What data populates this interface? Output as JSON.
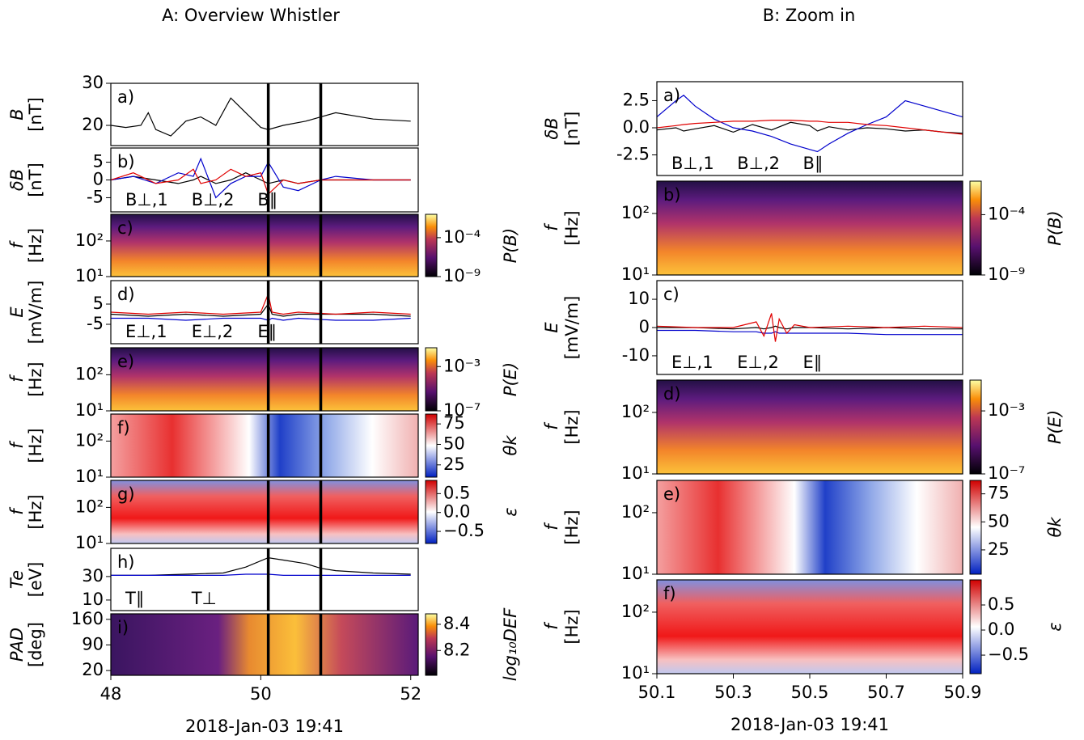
{
  "chart_data": [
    {
      "type": "line",
      "title": "A: Overview Whistler",
      "label": "a)",
      "ylabel": [
        "B",
        "[nT]"
      ],
      "xlim": [
        48,
        52.1
      ],
      "ylim": [
        15.2,
        30
      ],
      "yticks": [
        20,
        30
      ],
      "vlines": [
        50.1,
        50.8
      ],
      "x": [
        48,
        48.2,
        48.4,
        48.5,
        48.6,
        48.8,
        49,
        49.2,
        49.4,
        49.6,
        49.8,
        50,
        50.1,
        50.3,
        50.6,
        50.8,
        51,
        51.5,
        52
      ],
      "series": [
        {
          "name": null,
          "color": "#000000",
          "values": [
            20,
            19.5,
            20,
            23,
            19,
            17.5,
            21,
            22,
            20,
            26.5,
            23,
            19.5,
            19,
            20,
            21,
            22,
            23,
            21.5,
            21
          ]
        }
      ]
    },
    {
      "type": "line",
      "label": "b)",
      "ylabel": [
        "δB",
        "[nT]"
      ],
      "xlim": [
        48,
        52.1
      ],
      "ylim": [
        -9,
        9
      ],
      "yticks": [
        5,
        0,
        -5
      ],
      "vlines": [
        50.1,
        50.8
      ],
      "x": [
        48,
        48.3,
        48.6,
        48.9,
        49.1,
        49.2,
        49.4,
        49.6,
        49.8,
        50,
        50.1,
        50.3,
        50.5,
        50.8,
        51,
        51.5,
        52
      ],
      "series": [
        {
          "name": "B⊥,1",
          "color": "#000000",
          "values": [
            0,
            1,
            0,
            -1,
            0,
            1,
            -1,
            0,
            2,
            0,
            -1,
            0,
            -1,
            0,
            0,
            0,
            0
          ]
        },
        {
          "name": "B⊥,2",
          "color": "#0000cc",
          "values": [
            0,
            1,
            -1,
            2,
            1,
            6,
            -5,
            -1,
            1,
            1,
            5,
            -2,
            -3,
            0,
            1,
            0,
            0
          ]
        },
        {
          "name": "B∥",
          "color": "#e00000",
          "values": [
            0,
            2,
            -1,
            0,
            3,
            -1,
            0,
            3,
            1,
            2,
            -4,
            0,
            -1,
            0,
            0,
            0,
            0
          ]
        }
      ]
    },
    {
      "type": "spectrogram",
      "label": "c)",
      "ylabel": [
        "f",
        "[Hz]"
      ],
      "xlim": [
        48,
        52.1
      ],
      "ylim": [
        10,
        560
      ],
      "yscale": "log",
      "yticks": [
        {
          "value": 10,
          "label": "10¹"
        },
        {
          "value": 100,
          "label": "10²"
        }
      ],
      "vlines": [
        50.1,
        50.8
      ],
      "colormap": "inferno",
      "clabel": "P(B)",
      "cscale": "log",
      "clim": [
        1e-09,
        0.1
      ],
      "cticks": [
        {
          "value": 0.0001,
          "label": "10⁻⁴"
        },
        {
          "value": 1e-09,
          "label": "10⁻⁹"
        }
      ]
    },
    {
      "type": "line",
      "label": "d)",
      "ylabel": [
        "E",
        "[mV/m]"
      ],
      "xlim": [
        48,
        52.1
      ],
      "ylim": [
        -14.6,
        16.6
      ],
      "yticks": [
        5,
        -5
      ],
      "vlines": [
        50.1,
        50.8
      ],
      "x": [
        48,
        48.5,
        49,
        49.5,
        50,
        50.1,
        50.15,
        50.3,
        50.5,
        51,
        51.5,
        52
      ],
      "series": [
        {
          "name": "E⊥,1",
          "color": "#000000",
          "values": [
            0,
            -1,
            0,
            -1,
            0,
            5,
            0,
            -1,
            0,
            0,
            0,
            -1
          ]
        },
        {
          "name": "E⊥,2",
          "color": "#0000cc",
          "values": [
            -2,
            -2,
            -3,
            -2,
            -2,
            -3,
            -2,
            -3,
            -2,
            -3,
            -3,
            -2
          ]
        },
        {
          "name": "E∥",
          "color": "#e00000",
          "values": [
            1,
            0,
            1,
            0,
            1,
            10,
            1,
            0,
            1,
            0,
            1,
            0
          ]
        }
      ]
    },
    {
      "type": "spectrogram",
      "label": "e)",
      "ylabel": [
        "f",
        "[Hz]"
      ],
      "xlim": [
        48,
        52.1
      ],
      "ylim": [
        10,
        560
      ],
      "yscale": "log",
      "yticks": [
        {
          "value": 10,
          "label": "10¹"
        },
        {
          "value": 100,
          "label": "10²"
        }
      ],
      "vlines": [
        50.1,
        50.8
      ],
      "colormap": "inferno",
      "clabel": "P(E)",
      "cscale": "log",
      "clim": [
        1e-07,
        0.05
      ],
      "cticks": [
        {
          "value": 0.001,
          "label": "10⁻³"
        },
        {
          "value": 1e-07,
          "label": "10⁻⁷"
        }
      ]
    },
    {
      "type": "spectrogram",
      "label": "f)",
      "ylabel": [
        "f",
        "[Hz]"
      ],
      "xlim": [
        48,
        52.1
      ],
      "ylim": [
        10,
        560
      ],
      "yscale": "log",
      "yticks": [
        {
          "value": 10,
          "label": "10¹"
        },
        {
          "value": 100,
          "label": "10²"
        }
      ],
      "vlines": [
        50.1,
        50.8
      ],
      "colormap": "theta",
      "clabel": "θk",
      "clim": [
        10,
        87
      ],
      "cticks": [
        75,
        50,
        25
      ]
    },
    {
      "type": "spectrogram",
      "label": "g)",
      "ylabel": [
        "f",
        "[Hz]"
      ],
      "xlim": [
        48,
        52.1
      ],
      "ylim": [
        10,
        560
      ],
      "yscale": "log",
      "yticks": [
        {
          "value": 10,
          "label": "10¹"
        },
        {
          "value": 100,
          "label": "10²"
        }
      ],
      "vlines": [
        50.1,
        50.8
      ],
      "colormap": "ellipticity",
      "clabel": "ε",
      "clim": [
        -0.82,
        0.85
      ],
      "cticks": [
        0.5,
        {
          "value": 0,
          "label": "0.0"
        },
        {
          "value": -0.5,
          "label": "−0.5"
        }
      ]
    },
    {
      "type": "line",
      "label": "h)",
      "ylabel": [
        "Te",
        "[eV]"
      ],
      "xlim": [
        48,
        52.1
      ],
      "ylim": [
        1,
        54
      ],
      "yticks": [
        30,
        10
      ],
      "vlines": [
        50.1,
        50.8
      ],
      "x": [
        48,
        48.5,
        49,
        49.5,
        49.8,
        50.1,
        50.3,
        50.6,
        50.8,
        51,
        51.5,
        52
      ],
      "series": [
        {
          "name": "T∥",
          "color": "#000000",
          "values": [
            31,
            31,
            32,
            33,
            38,
            46,
            44,
            41,
            37,
            35,
            33,
            32
          ]
        },
        {
          "name": "T⊥",
          "color": "#0000cc",
          "values": [
            31,
            31,
            31,
            31,
            32,
            32,
            31,
            31,
            31,
            31,
            31,
            31
          ]
        }
      ]
    },
    {
      "type": "spectrogram",
      "label": "i)",
      "ylabel": [
        "PAD",
        "[deg]"
      ],
      "xlim": [
        48,
        52.1
      ],
      "ylim": [
        7,
        175
      ],
      "yticks": [
        160,
        90,
        20
      ],
      "vlines": [
        50.1,
        50.8
      ],
      "colormap": "inferno-def",
      "clabel": "log₁₀DEF",
      "clim": [
        8.01,
        8.48
      ],
      "cticks": [
        8.4,
        8.2
      ],
      "xticks": [
        48,
        50,
        52
      ],
      "xlabel": "2018-Jan-03 19:41"
    },
    {
      "type": "line",
      "title": "B: Zoom in",
      "label": "a)",
      "ylabel": [
        "δB",
        "[nT]"
      ],
      "xlim": [
        50.1,
        50.9
      ],
      "ylim": [
        -4.4,
        4.25
      ],
      "yticks": [
        2.5,
        {
          "value": 0,
          "label": "0.0"
        },
        -2.5
      ],
      "x": [
        50.1,
        50.15,
        50.17,
        50.2,
        50.25,
        50.3,
        50.35,
        50.4,
        50.45,
        50.5,
        50.52,
        50.55,
        50.6,
        50.65,
        50.7,
        50.75,
        50.8,
        50.85,
        50.9
      ],
      "series": [
        {
          "name": "B⊥,1",
          "color": "#000000",
          "values": [
            -0.2,
            0,
            -0.3,
            -0.1,
            0.2,
            -0.4,
            0.3,
            -0.2,
            0.5,
            0.2,
            -0.3,
            0.1,
            -0.2,
            0,
            -0.1,
            -0.3,
            -0.2,
            -0.4,
            -0.5
          ]
        },
        {
          "name": "B⊥,2",
          "color": "#0000cc",
          "values": [
            1,
            2.5,
            3,
            2,
            0.8,
            0,
            -0.3,
            -0.8,
            -1.5,
            -2,
            -2.2,
            -1.5,
            -0.5,
            0.3,
            1,
            2.5,
            2,
            1.5,
            1
          ]
        },
        {
          "name": "B∥",
          "color": "#e00000",
          "values": [
            0,
            0.2,
            0.3,
            0.4,
            0.5,
            0.6,
            0.6,
            0.7,
            0.7,
            0.6,
            0.6,
            0.5,
            0.5,
            0.3,
            0.2,
            0,
            -0.2,
            -0.4,
            -0.6
          ]
        }
      ]
    },
    {
      "type": "spectrogram",
      "label": "b)",
      "ylabel": [
        "f",
        "[Hz]"
      ],
      "xlim": [
        50.1,
        50.9
      ],
      "ylim": [
        10,
        335
      ],
      "yscale": "log",
      "yticks": [
        {
          "value": 10,
          "label": "10¹"
        },
        {
          "value": 100,
          "label": "10²"
        }
      ],
      "colormap": "inferno",
      "clabel": "P(B)",
      "cscale": "log",
      "clim": [
        1e-09,
        0.06
      ],
      "cticks": [
        {
          "value": 0.0001,
          "label": "10⁻⁴"
        },
        {
          "value": 1e-09,
          "label": "10⁻⁹"
        }
      ]
    },
    {
      "type": "line",
      "label": "c)",
      "ylabel": [
        "E",
        "[mV/m]"
      ],
      "xlim": [
        50.1,
        50.9
      ],
      "ylim": [
        -16.6,
        16.6
      ],
      "yticks": [
        10,
        0,
        -10
      ],
      "x": [
        50.1,
        50.2,
        50.3,
        50.36,
        50.38,
        50.4,
        50.41,
        50.42,
        50.44,
        50.46,
        50.5,
        50.6,
        50.7,
        50.8,
        50.9
      ],
      "series": [
        {
          "name": "E⊥,1",
          "color": "#000000",
          "values": [
            0,
            0,
            -0.5,
            0,
            -0.5,
            0,
            0.5,
            0,
            -0.5,
            0,
            0,
            -0.5,
            0,
            -0.5,
            -0.5
          ]
        },
        {
          "name": "E⊥,2",
          "color": "#0000cc",
          "values": [
            -1,
            -1,
            -1.5,
            -1.5,
            -2,
            -2,
            -1.5,
            -2,
            -2,
            -2,
            -2,
            -2,
            -2.5,
            -2.5,
            -2.5
          ]
        },
        {
          "name": "E∥",
          "color": "#e00000",
          "values": [
            0.5,
            0,
            0,
            2,
            -3,
            5,
            -5,
            3,
            -2,
            1,
            0,
            0.5,
            0,
            0.5,
            0
          ]
        }
      ]
    },
    {
      "type": "spectrogram",
      "label": "d)",
      "ylabel": [
        "f",
        "[Hz]"
      ],
      "xlim": [
        50.1,
        50.9
      ],
      "ylim": [
        10,
        335
      ],
      "yscale": "log",
      "yticks": [
        {
          "value": 10,
          "label": "10¹"
        },
        {
          "value": 100,
          "label": "10²"
        }
      ],
      "colormap": "inferno",
      "clabel": "P(E)",
      "cscale": "log",
      "clim": [
        1e-07,
        0.09
      ],
      "cticks": [
        {
          "value": 0.001,
          "label": "10⁻³"
        },
        {
          "value": 1e-07,
          "label": "10⁻⁷"
        }
      ]
    },
    {
      "type": "spectrogram",
      "label": "e)",
      "ylabel": [
        "f",
        "[Hz]"
      ],
      "xlim": [
        50.1,
        50.9
      ],
      "ylim": [
        10,
        335
      ],
      "yscale": "log",
      "yticks": [
        {
          "value": 10,
          "label": "10¹"
        },
        {
          "value": 100,
          "label": "10²"
        }
      ],
      "colormap": "theta",
      "clabel": "θk",
      "clim": [
        3.3,
        87
      ],
      "cticks": [
        75,
        50,
        25
      ]
    },
    {
      "type": "spectrogram",
      "label": "f)",
      "ylabel": [
        "f",
        "[Hz]"
      ],
      "xlim": [
        50.1,
        50.9
      ],
      "ylim": [
        10,
        335
      ],
      "yscale": "log",
      "yticks": [
        {
          "value": 10,
          "label": "10¹"
        },
        {
          "value": 100,
          "label": "10²"
        }
      ],
      "colormap": "ellipticity",
      "clabel": "ε",
      "clim": [
        -0.87,
        1.0
      ],
      "cticks": [
        0.5,
        {
          "value": 0,
          "label": "0.0"
        },
        {
          "value": -0.5,
          "label": "−0.5"
        }
      ],
      "xticks": [
        50.1,
        50.3,
        50.5,
        50.7,
        50.9
      ],
      "xlabel": "2018-Jan-03 19:41"
    }
  ]
}
